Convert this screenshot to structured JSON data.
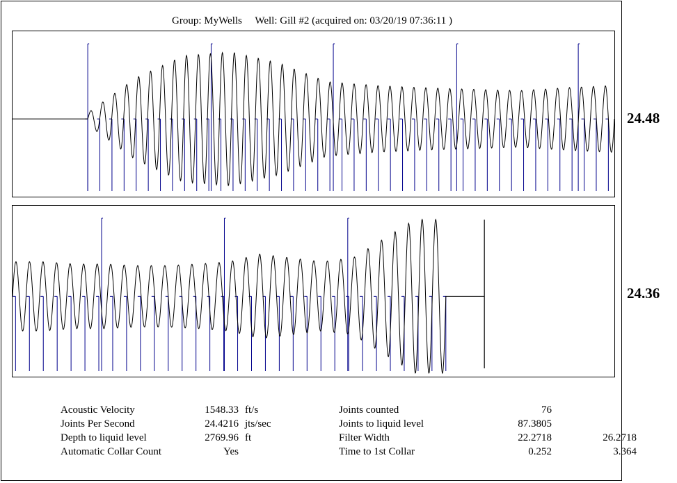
{
  "header": {
    "group_label": "Group: MyWells",
    "well_label": "Well: Gill #2 (acquired on: 03/20/19 07:36:11 )"
  },
  "chart_data": [
    {
      "type": "line",
      "title": "",
      "panel": "upper collar trace",
      "rate_label": "24.48",
      "segments": [
        {
          "kind": "flat",
          "from": 0.0,
          "to": 0.125
        },
        {
          "kind": "oscillation",
          "from": 0.125,
          "to": 1.0,
          "cycles": 44,
          "amplitude_profile": [
            0.08,
            0.55,
            0.85,
            0.9,
            0.75,
            0.5,
            0.45,
            0.42,
            0.4,
            0.38,
            0.42,
            0.45
          ]
        }
      ],
      "collar_markers": {
        "count": 44,
        "start": 0.125,
        "end": 0.99
      },
      "section_markers": [
        0.125,
        0.33,
        0.533,
        0.738,
        0.94
      ],
      "line_color": "#000000",
      "marker_color": "#00008B"
    },
    {
      "type": "line",
      "title": "",
      "panel": "lower collar trace",
      "rate_label": "24.36",
      "segments": [
        {
          "kind": "oscillation",
          "from": 0.0,
          "to": 0.72,
          "cycles": 32,
          "amplitude_profile": [
            0.45,
            0.45,
            0.42,
            0.42,
            0.4,
            0.4,
            0.42,
            0.45,
            0.55,
            0.5,
            0.45,
            0.5,
            0.75,
            1.0,
            1.0
          ]
        },
        {
          "kind": "flat",
          "from": 0.72,
          "to": 0.784
        }
      ],
      "collar_markers": {
        "count": 32,
        "start": 0.005,
        "end": 0.72
      },
      "section_markers": [
        0.148,
        0.352,
        0.557
      ],
      "end_marker": 0.784,
      "line_color": "#000000",
      "marker_color": "#00008B"
    }
  ],
  "stats": [
    {
      "label": "Acoustic Velocity",
      "value": "1548.33",
      "unit": "ft/s",
      "label2": "Joints counted",
      "value2": "76",
      "value3": ""
    },
    {
      "label": "Joints Per Second",
      "value": "24.4216",
      "unit": "jts/sec",
      "label2": "Joints to liquid level",
      "value2": "87.3805",
      "value3": ""
    },
    {
      "label": "Depth to liquid level",
      "value": "2769.96",
      "unit": "ft",
      "label2": "Filter Width",
      "value2": "22.2718",
      "value3": "26.2718"
    },
    {
      "label": "Automatic Collar Count",
      "value": "Yes",
      "unit": "",
      "label2": "Time to 1st Collar",
      "value2": "0.252",
      "value3": "3.364"
    }
  ]
}
